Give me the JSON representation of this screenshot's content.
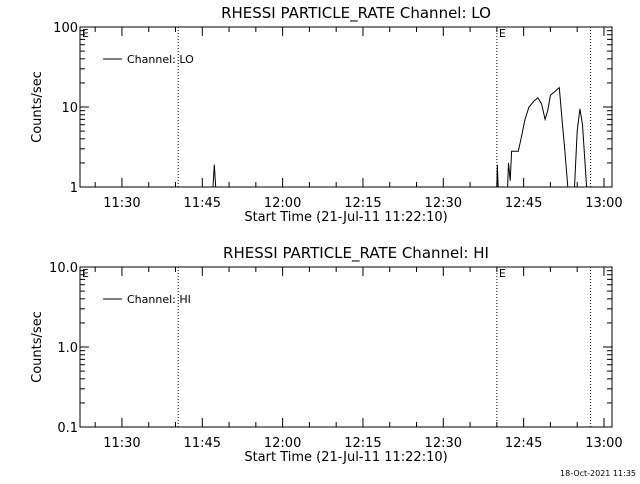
{
  "chart_data": [
    {
      "type": "line",
      "title": "RHESSI PARTICLE_RATE Channel: LO",
      "xlabel": "Start Time (21-Jul-11 11:22:10)",
      "ylabel": "Counts/sec",
      "y_scale": "log",
      "ylim": [
        1,
        100
      ],
      "y_ticks": [
        "1",
        "10",
        "100"
      ],
      "x_ticks": [
        "11:30",
        "11:45",
        "12:00",
        "12:15",
        "12:30",
        "12:45",
        "13:00"
      ],
      "xlim": [
        "11:22:10",
        "13:01:30"
      ],
      "legend": "top-left",
      "event_markers": [
        {
          "time": "11:40:30",
          "label": ""
        },
        {
          "time": "12:40:00",
          "label": "E"
        },
        {
          "time": "12:57:30",
          "label": ""
        }
      ],
      "corner_label": "E",
      "series": [
        {
          "name": "Channel: LO",
          "segments": [
            [
              [
                "11:47:00",
                1
              ],
              [
                "11:47:15",
                1.9
              ],
              [
                "11:47:30",
                1
              ]
            ],
            [
              [
                "12:40:00",
                1
              ],
              [
                "12:40:05",
                1.9
              ],
              [
                "12:40:15",
                1
              ]
            ],
            [
              [
                "12:42:00",
                1
              ],
              [
                "12:42:10",
                2
              ],
              [
                "12:42:30",
                1.2
              ],
              [
                "12:42:45",
                2.8
              ],
              [
                "12:44:00",
                2.8
              ],
              [
                "12:44:30",
                4
              ],
              [
                "12:45:15",
                7
              ],
              [
                "12:46:00",
                10
              ],
              [
                "12:47:00",
                12
              ],
              [
                "12:47:40",
                13
              ],
              [
                "12:48:20",
                11
              ],
              [
                "12:49:00",
                7
              ],
              [
                "12:49:30",
                9
              ],
              [
                "12:50:00",
                14
              ],
              [
                "12:51:00",
                16
              ],
              [
                "12:51:40",
                17.5
              ],
              [
                "12:52:10",
                7
              ],
              [
                "12:52:40",
                3
              ],
              [
                "12:53:15",
                1
              ]
            ],
            [
              [
                "12:54:30",
                1
              ],
              [
                "12:55:00",
                5
              ],
              [
                "12:55:30",
                9.5
              ],
              [
                "12:56:00",
                6
              ],
              [
                "12:56:45",
                1
              ]
            ]
          ]
        }
      ]
    },
    {
      "type": "line",
      "title": "RHESSI PARTICLE_RATE Channel: HI",
      "xlabel": "Start Time (21-Jul-11 11:22:10)",
      "ylabel": "Counts/sec",
      "y_scale": "log",
      "ylim": [
        0.1,
        10
      ],
      "y_ticks": [
        "0.1",
        "1.0",
        "10.0"
      ],
      "x_ticks": [
        "11:30",
        "11:45",
        "12:00",
        "12:15",
        "12:30",
        "12:45",
        "13:00"
      ],
      "xlim": [
        "11:22:10",
        "13:01:30"
      ],
      "legend": "top-left",
      "event_markers": [
        {
          "time": "11:40:30",
          "label": ""
        },
        {
          "time": "12:40:00",
          "label": "E"
        },
        {
          "time": "12:57:30",
          "label": ""
        }
      ],
      "corner_label": "E",
      "series": [
        {
          "name": "Channel: HI",
          "segments": []
        }
      ]
    }
  ],
  "footer": {
    "timestamp": "18-Oct-2021 11:35"
  }
}
